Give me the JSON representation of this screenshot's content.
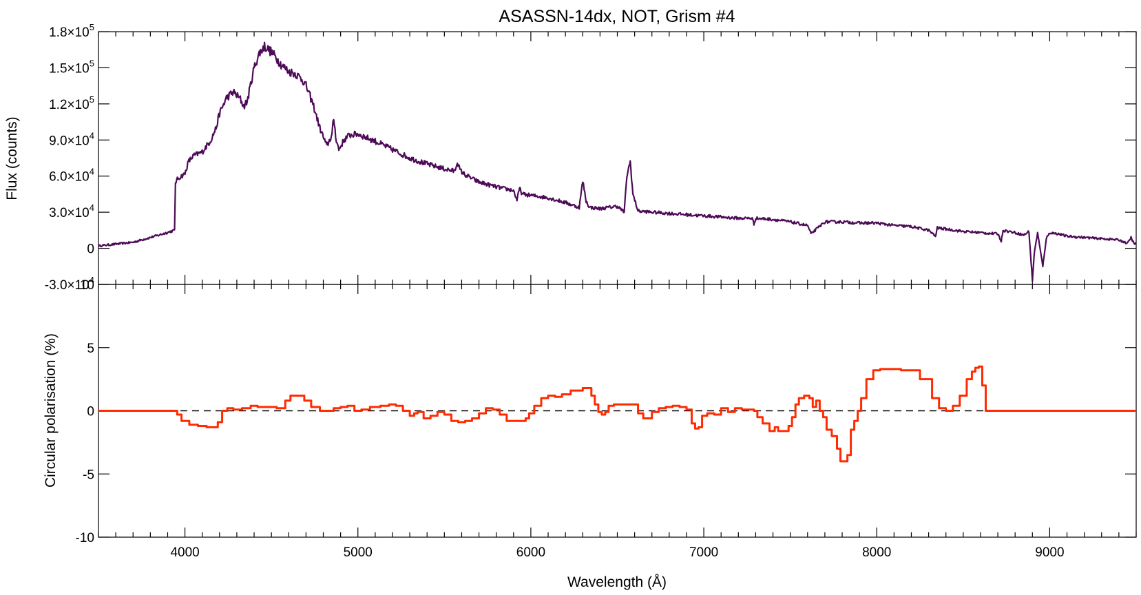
{
  "chart_data": [
    {
      "type": "line",
      "title": "ASASSN-14dx, NOT, Grism #4",
      "ylabel": "Flux (counts)",
      "xlabel": "",
      "xlim": [
        3500,
        9500
      ],
      "ylim": [
        -30000,
        180000
      ],
      "yticks": [
        {
          "value": -30000,
          "mant": "-3.0×10",
          "exp": "4"
        },
        {
          "value": 0,
          "mant": "0",
          "exp": ""
        },
        {
          "value": 30000,
          "mant": "3.0×10",
          "exp": "4"
        },
        {
          "value": 60000,
          "mant": "6.0×10",
          "exp": "4"
        },
        {
          "value": 90000,
          "mant": "9.0×10",
          "exp": "4"
        },
        {
          "value": 120000,
          "mant": "1.2×10",
          "exp": "5"
        },
        {
          "value": 150000,
          "mant": "1.5×10",
          "exp": "5"
        },
        {
          "value": 180000,
          "mant": "1.8×10",
          "exp": "5"
        }
      ],
      "color": "#4d0b57",
      "series": [
        {
          "x": [
            3500,
            3700,
            3850,
            3940,
            3945,
            3960,
            4000,
            4020,
            4050,
            4100,
            4150,
            4180,
            4200,
            4240,
            4280,
            4320,
            4340,
            4360,
            4400,
            4430,
            4460,
            4500,
            4530,
            4560,
            4600,
            4640,
            4680,
            4700,
            4740,
            4780,
            4820,
            4850,
            4860,
            4875,
            4890,
            4920,
            4950,
            5000,
            5100,
            5200,
            5300,
            5400,
            5500,
            5560,
            5575,
            5590,
            5620,
            5700,
            5800,
            5900,
            5920,
            5935,
            5950,
            6000,
            6100,
            6200,
            6280,
            6300,
            6320,
            6340,
            6400,
            6500,
            6540,
            6555,
            6575,
            6590,
            6620,
            6700,
            6800,
            6900,
            7000,
            7100,
            7200,
            7280,
            7290,
            7300,
            7400,
            7500,
            7600,
            7620,
            7700,
            7800,
            7900,
            8000,
            8100,
            8200,
            8300,
            8340,
            8350,
            8400,
            8500,
            8600,
            8700,
            8720,
            8730,
            8800,
            8850,
            8880,
            8900,
            8910,
            8930,
            8960,
            8980,
            9000,
            9050,
            9100,
            9200,
            9300,
            9400,
            9450,
            9470,
            9490,
            9500
          ],
          "y": [
            2000,
            5000,
            11000,
            15000,
            55000,
            58000,
            62000,
            72000,
            77000,
            80000,
            90000,
            100000,
            112000,
            125000,
            130000,
            124000,
            118000,
            122000,
            150000,
            162000,
            168000,
            163000,
            158000,
            152000,
            147000,
            145000,
            140000,
            135000,
            120000,
            100000,
            85000,
            94000,
            108000,
            90000,
            82000,
            90000,
            94000,
            95000,
            89000,
            82000,
            75000,
            70000,
            66000,
            64000,
            72000,
            65000,
            61000,
            55000,
            51000,
            48000,
            40000,
            50000,
            45000,
            44000,
            42000,
            38000,
            34000,
            56000,
            39000,
            34000,
            33000,
            35000,
            30000,
            60000,
            72000,
            45000,
            31000,
            30000,
            29000,
            28000,
            27000,
            26000,
            25000,
            25000,
            20000,
            25000,
            24000,
            22000,
            19000,
            12000,
            22000,
            22000,
            21000,
            21000,
            19000,
            18000,
            15000,
            10000,
            17000,
            16000,
            14000,
            13000,
            12000,
            6000,
            15000,
            13000,
            11000,
            14000,
            -27000,
            -5000,
            13000,
            -15000,
            8000,
            13000,
            12000,
            10000,
            9000,
            8000,
            7000,
            4000,
            9000,
            3000,
            5000
          ]
        }
      ]
    },
    {
      "type": "line",
      "title": "",
      "ylabel": "Circular polarisation (%)",
      "xlabel": "Wavelength (Å)",
      "xlim": [
        3500,
        9500
      ],
      "ylim": [
        -10,
        10
      ],
      "yticks": [
        -10,
        -5,
        0,
        5,
        10
      ],
      "xticks": [
        4000,
        5000,
        6000,
        7000,
        8000,
        9000
      ],
      "color": "#ff2a00",
      "zero_line": {
        "y": 0,
        "style": "dashed"
      },
      "series": [
        {
          "x": [
            3500,
            3950,
            3960,
            4000,
            4050,
            4100,
            4150,
            4180,
            4200,
            4230,
            4260,
            4300,
            4360,
            4400,
            4440,
            4500,
            4560,
            4600,
            4620,
            4680,
            4700,
            4760,
            4800,
            4840,
            4880,
            4920,
            4960,
            5000,
            5040,
            5100,
            5160,
            5200,
            5240,
            5280,
            5320,
            5330,
            5360,
            5400,
            5440,
            5480,
            5520,
            5560,
            5600,
            5640,
            5680,
            5720,
            5760,
            5800,
            5840,
            5880,
            5960,
            5980,
            6000,
            6040,
            6080,
            6120,
            6160,
            6200,
            6260,
            6340,
            6360,
            6380,
            6400,
            6420,
            6440,
            6460,
            6500,
            6600,
            6640,
            6660,
            6680,
            6720,
            6760,
            6800,
            6840,
            6880,
            6920,
            6940,
            6960,
            6980,
            7000,
            7040,
            7080,
            7120,
            7160,
            7200,
            7240,
            7280,
            7300,
            7320,
            7360,
            7400,
            7420,
            7440,
            7480,
            7500,
            7520,
            7540,
            7560,
            7600,
            7620,
            7640,
            7660,
            7680,
            7700,
            7720,
            7760,
            7780,
            7800,
            7820,
            7840,
            7860,
            7880,
            7900,
            7920,
            7960,
            8000,
            8040,
            8080,
            8200,
            8300,
            8340,
            8380,
            8420,
            8460,
            8500,
            8540,
            8560,
            8580,
            8600,
            8620,
            8640,
            9500
          ],
          "y": [
            0,
            0,
            -0.3,
            -0.8,
            -1.1,
            -1.2,
            -1.3,
            -1.3,
            -0.9,
            0,
            0.2,
            0.1,
            0.2,
            0.4,
            0.3,
            0.3,
            0.2,
            0.8,
            1.2,
            1.2,
            0.8,
            0.3,
            0,
            0,
            0.2,
            0.3,
            0.4,
            0,
            0.1,
            0.3,
            0.4,
            0.5,
            0.4,
            0,
            -0.4,
            -0.2,
            -0.1,
            -0.6,
            -0.4,
            -0.1,
            -0.3,
            -0.8,
            -0.9,
            -0.8,
            -0.6,
            -0.2,
            0.2,
            0.1,
            -0.3,
            -0.8,
            -0.8,
            -0.6,
            -0.2,
            0.4,
            1.0,
            1.2,
            1.1,
            1.3,
            1.6,
            1.8,
            1.2,
            0.5,
            -0.1,
            -0.3,
            -0.1,
            0.4,
            0.5,
            0.5,
            -0.2,
            -0.6,
            -0.6,
            -0.1,
            0.2,
            0.3,
            0.4,
            0.3,
            0.1,
            -1.0,
            -1.4,
            -1.3,
            -0.4,
            -0.2,
            -0.3,
            0.2,
            -0.1,
            0.2,
            0.1,
            0.1,
            0,
            -0.5,
            -1.0,
            -1.6,
            -1.3,
            -1.6,
            -1.6,
            -1.2,
            -0.5,
            0.5,
            1.0,
            1.2,
            1.0,
            0.3,
            0.8,
            0,
            -0.5,
            -1.5,
            -2.0,
            -3.0,
            -4.0,
            -4.0,
            -3.5,
            -1.5,
            -0.8,
            0,
            1.0,
            2.5,
            3.2,
            3.3,
            3.3,
            3.2,
            2.5,
            1.0,
            0.2,
            0,
            0.4,
            1.2,
            2.5,
            3.1,
            3.4,
            3.5,
            2.0,
            0,
            0
          ]
        }
      ]
    }
  ]
}
